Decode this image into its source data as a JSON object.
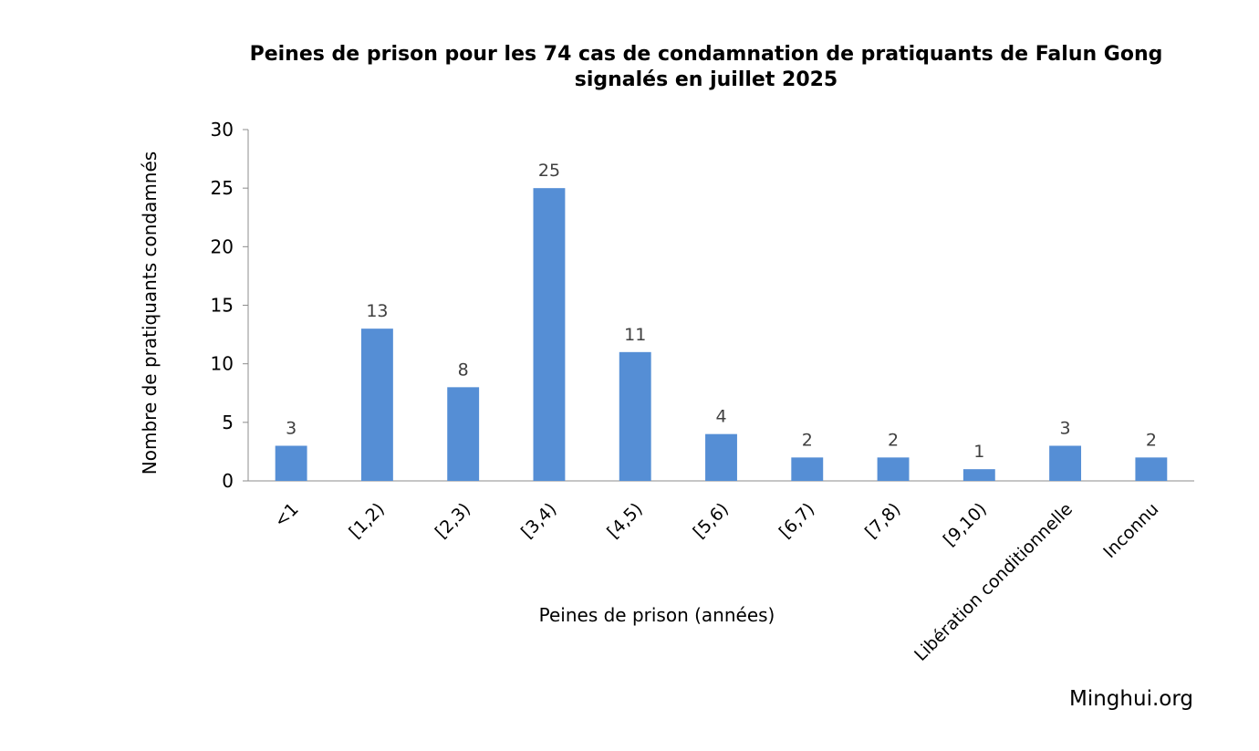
{
  "source": "Minghui.org",
  "chart_data": {
    "type": "bar",
    "title_lines": [
      "Peines de prison pour les 74 cas de condamnation de pratiquants de Falun Gong",
      "signalés en juillet 2025"
    ],
    "xlabel": "Peines de prison (années)",
    "ylabel": "Nombre de pratiquants condamnés",
    "categories": [
      "<1",
      "[1,2)",
      "[2,3)",
      "[3,4)",
      "[4,5)",
      "[5,6)",
      "[6,7)",
      "[7,8)",
      "[9,10)",
      "Libération conditionnelle",
      "Inconnu"
    ],
    "values": [
      3,
      13,
      8,
      25,
      11,
      4,
      2,
      2,
      1,
      3,
      2
    ],
    "ylim": [
      0,
      30
    ],
    "yticks": [
      0,
      5,
      10,
      15,
      20,
      25,
      30
    ],
    "data_labels": true,
    "grid": false,
    "legend": "none",
    "bar_color": "#558ed5"
  }
}
